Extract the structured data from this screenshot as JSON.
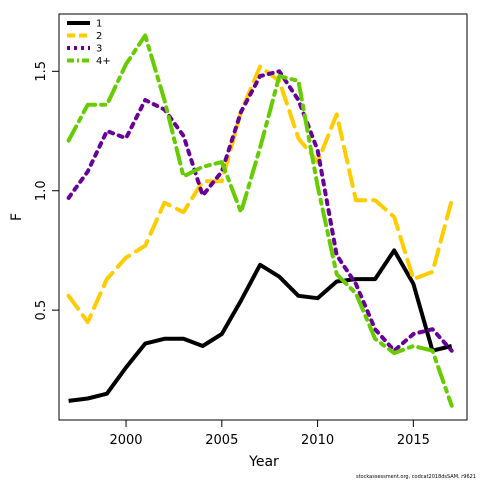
{
  "chart_data": {
    "type": "line",
    "title": "",
    "xlabel": "Year",
    "ylabel": "F",
    "xlim": [
      1996.5,
      2017.8
    ],
    "ylim": [
      0.04,
      1.74
    ],
    "xticks": [
      2000,
      2005,
      2010,
      2015
    ],
    "xtick_labels": [
      "2000",
      "2005",
      "2010",
      "2015"
    ],
    "yticks": [
      0.5,
      1.0,
      1.5
    ],
    "ytick_labels": [
      "0.5",
      "1.0",
      "1.5"
    ],
    "grid": false,
    "legend_position": "top-left",
    "x": [
      1997,
      1998,
      1999,
      2000,
      2001,
      2002,
      2003,
      2004,
      2005,
      2006,
      2007,
      2008,
      2009,
      2010,
      2011,
      2012,
      2013,
      2014,
      2015,
      2016,
      2017
    ],
    "series": [
      {
        "name": "1",
        "color": "#000000",
        "dash": "solid",
        "width": 4,
        "values": [
          0.12,
          0.13,
          0.15,
          0.26,
          0.36,
          0.38,
          0.38,
          0.35,
          0.4,
          0.54,
          0.69,
          0.64,
          0.56,
          0.55,
          0.62,
          0.63,
          0.63,
          0.75,
          0.61,
          0.33,
          0.35
        ]
      },
      {
        "name": "2",
        "color": "#FFCC00",
        "dash": "dashed",
        "width": 4,
        "values": [
          0.56,
          0.45,
          0.63,
          0.72,
          0.77,
          0.95,
          0.91,
          1.04,
          1.04,
          1.33,
          1.52,
          1.46,
          1.22,
          1.12,
          1.32,
          0.96,
          0.96,
          0.89,
          0.63,
          0.66,
          0.96
        ]
      },
      {
        "name": "3",
        "color": "#660099",
        "dash": "dotted",
        "width": 4,
        "values": [
          0.97,
          1.08,
          1.25,
          1.22,
          1.38,
          1.34,
          1.23,
          0.98,
          1.08,
          1.33,
          1.48,
          1.5,
          1.38,
          1.17,
          0.73,
          0.61,
          0.42,
          0.33,
          0.4,
          0.42,
          0.33
        ]
      },
      {
        "name": "4+",
        "color": "#66CC00",
        "dash": "dashed-dot",
        "width": 4,
        "values": [
          1.21,
          1.36,
          1.36,
          1.53,
          1.65,
          1.38,
          1.06,
          1.1,
          1.12,
          0.91,
          1.18,
          1.48,
          1.46,
          1.02,
          0.65,
          0.57,
          0.38,
          0.32,
          0.35,
          0.33,
          0.1
        ]
      }
    ],
    "footnote": "stockassessment.org, codcat2018dsSAM, r9621"
  }
}
